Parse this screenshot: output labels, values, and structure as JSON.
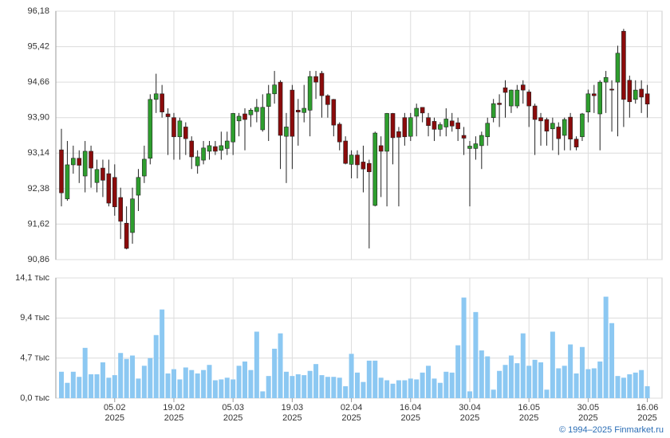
{
  "chart_data": [
    {
      "type": "candlestick",
      "categories": [
        null,
        null,
        null,
        null,
        null,
        null,
        null,
        null,
        null,
        "05.02\n2025",
        null,
        null,
        null,
        null,
        null,
        null,
        null,
        null,
        null,
        "19.02\n2025",
        null,
        null,
        null,
        null,
        null,
        null,
        null,
        null,
        null,
        "05.03\n2025",
        null,
        null,
        null,
        null,
        null,
        null,
        null,
        null,
        null,
        "19.03\n2025",
        null,
        null,
        null,
        null,
        null,
        null,
        null,
        null,
        null,
        "02.04\n2025",
        null,
        null,
        null,
        null,
        null,
        null,
        null,
        null,
        null,
        "16.04\n2025",
        null,
        null,
        null,
        null,
        null,
        null,
        null,
        null,
        null,
        "30.04\n2025",
        null,
        null,
        null,
        null,
        null,
        null,
        null,
        null,
        null,
        "16.05\n2025",
        null,
        null,
        null,
        null,
        null,
        null,
        null,
        null,
        null,
        "30.05\n2025",
        null,
        null,
        null,
        null,
        null,
        null,
        null,
        null,
        null,
        "16.06\n2025"
      ],
      "open": [
        93.21,
        92.16,
        92.89,
        93.03,
        92.65,
        93.18,
        92.51,
        92.82,
        92.7,
        92.62,
        92.19,
        91.64,
        91.44,
        92.24,
        92.65,
        93.03,
        94.29,
        94.41,
        93.98,
        93.9,
        93.49,
        93.7,
        93.4,
        92.87,
        92.99,
        93.18,
        93.28,
        93.2,
        93.24,
        93.38,
        93.83,
        93.98,
        93.96,
        94.03,
        93.64,
        94.14,
        94.41,
        94.66,
        93.5,
        94.49,
        94.06,
        94.01,
        94.06,
        94.78,
        94.85,
        94.37,
        94.29,
        93.76,
        93.4,
        92.9,
        93.1,
        92.95,
        92.92,
        92.02,
        93.3,
        93.18,
        93.99,
        93.6,
        93.9,
        93.5,
        93.93,
        94.12,
        93.9,
        93.82,
        93.65,
        93.7,
        93.83,
        93.79,
        93.52,
        93.24,
        93.24,
        93.3,
        93.49,
        93.9,
        94.21,
        94.54,
        94.15,
        94.15,
        94.6,
        94.45,
        94.15,
        93.9,
        93.86,
        93.66,
        93.7,
        93.52,
        93.91,
        93.44,
        93.49,
        94.02,
        94.41,
        93.98,
        94.66,
        94.51,
        94.66,
        95.75,
        94.7,
        94.29,
        94.51,
        94.41
      ],
      "high": [
        93.66,
        93.4,
        93.3,
        93.2,
        93.4,
        93.3,
        93.0,
        93.0,
        93.0,
        92.9,
        92.4,
        92.0,
        92.4,
        92.8,
        93.3,
        94.4,
        94.84,
        94.6,
        94.1,
        94.0,
        93.9,
        93.8,
        93.5,
        93.2,
        93.4,
        93.4,
        93.4,
        93.6,
        93.6,
        94.0,
        94.0,
        94.1,
        94.1,
        94.3,
        94.4,
        94.6,
        94.9,
        94.7,
        94.0,
        94.6,
        94.3,
        94.6,
        94.9,
        94.9,
        94.9,
        94.4,
        94.3,
        93.8,
        93.5,
        93.2,
        93.2,
        93.3,
        93.0,
        93.6,
        93.5,
        94.0,
        94.0,
        93.7,
        94.0,
        94.0,
        94.2,
        94.1,
        94.0,
        93.9,
        93.8,
        94.1,
        94.0,
        93.9,
        93.7,
        93.4,
        93.5,
        93.6,
        93.9,
        94.3,
        94.4,
        94.7,
        94.5,
        94.6,
        94.7,
        94.5,
        94.2,
        94.0,
        93.9,
        93.9,
        93.8,
        93.9,
        94.0,
        93.5,
        94.0,
        94.5,
        94.6,
        94.7,
        94.9,
        94.7,
        95.44,
        95.8,
        94.8,
        94.7,
        94.7,
        94.6
      ],
      "low": [
        92.0,
        92.12,
        92.7,
        92.5,
        92.3,
        92.4,
        92.3,
        92.2,
        92.0,
        91.8,
        91.3,
        91.08,
        91.2,
        91.9,
        92.5,
        92.9,
        94.0,
        93.9,
        93.1,
        93.0,
        93.0,
        93.1,
        92.8,
        92.7,
        92.9,
        93.0,
        93.1,
        93.0,
        93.1,
        93.1,
        93.5,
        93.2,
        93.7,
        93.8,
        93.6,
        93.4,
        94.2,
        92.8,
        92.5,
        92.8,
        93.3,
        93.8,
        93.5,
        94.3,
        93.9,
        93.9,
        93.5,
        93.2,
        92.9,
        92.6,
        92.6,
        92.3,
        91.1,
        92.0,
        92.2,
        92.0,
        92.9,
        92.0,
        93.3,
        93.4,
        93.5,
        93.8,
        93.5,
        93.4,
        93.5,
        93.5,
        93.6,
        93.4,
        93.1,
        92.0,
        93.0,
        92.8,
        93.3,
        93.8,
        93.7,
        93.9,
        94.0,
        94.1,
        94.2,
        93.7,
        93.1,
        93.3,
        93.3,
        93.2,
        93.1,
        93.2,
        93.2,
        93.2,
        93.4,
        93.8,
        94.0,
        93.2,
        94.0,
        93.6,
        93.5,
        93.7,
        93.9,
        94.2,
        94.0,
        93.9
      ],
      "close": [
        92.29,
        92.89,
        93.03,
        92.88,
        93.18,
        92.82,
        92.79,
        92.56,
        92.07,
        91.99,
        91.68,
        91.1,
        92.16,
        92.62,
        93.01,
        94.29,
        94.41,
        94.02,
        93.92,
        93.49,
        93.83,
        93.45,
        93.06,
        93.06,
        93.25,
        93.3,
        93.18,
        93.3,
        93.4,
        93.99,
        93.93,
        93.86,
        94.06,
        94.12,
        94.12,
        94.41,
        94.6,
        93.52,
        93.7,
        93.5,
        94.02,
        94.1,
        94.78,
        94.66,
        94.37,
        94.18,
        93.74,
        93.38,
        92.92,
        93.1,
        92.89,
        92.8,
        92.74,
        93.57,
        93.18,
        93.99,
        93.47,
        93.48,
        93.49,
        93.9,
        94.1,
        94.0,
        93.73,
        93.65,
        93.75,
        93.87,
        93.72,
        93.66,
        93.46,
        93.29,
        93.34,
        93.52,
        93.78,
        94.2,
        94.18,
        94.44,
        94.49,
        94.49,
        94.49,
        94.15,
        93.86,
        93.83,
        93.61,
        93.78,
        93.45,
        93.86,
        93.44,
        93.27,
        93.98,
        94.41,
        94.37,
        94.66,
        94.76,
        94.49,
        95.28,
        94.29,
        94.24,
        94.49,
        94.34,
        94.19
      ],
      "up_color": "#2e9e2e",
      "down_color": "#8b0b0b",
      "ylim": [
        90.86,
        96.18
      ],
      "yticks": [
        {
          "value": 90.86,
          "label": "90,86"
        },
        {
          "value": 91.62,
          "label": "91,62"
        },
        {
          "value": 92.38,
          "label": "92,38"
        },
        {
          "value": 93.14,
          "label": "93,14"
        },
        {
          "value": 93.9,
          "label": "93,90"
        },
        {
          "value": 94.66,
          "label": "94,66"
        },
        {
          "value": 95.42,
          "label": "95,42"
        },
        {
          "value": 96.18,
          "label": "96,18"
        }
      ],
      "grid": true
    },
    {
      "type": "bar",
      "values": [
        3.1,
        1.8,
        3.1,
        2.5,
        5.9,
        2.8,
        2.8,
        4.2,
        2.4,
        2.7,
        5.3,
        4.6,
        5.0,
        2.3,
        3.8,
        4.7,
        7.4,
        10.4,
        2.9,
        3.4,
        2.2,
        3.6,
        3.3,
        2.9,
        3.3,
        3.9,
        2.1,
        2.2,
        2.4,
        2.2,
        3.8,
        4.3,
        3.3,
        7.8,
        0.8,
        2.6,
        5.8,
        7.6,
        3.1,
        2.6,
        2.8,
        2.7,
        3.2,
        4.0,
        2.7,
        2.5,
        2.5,
        2.4,
        1.4,
        5.2,
        3.0,
        1.9,
        4.4,
        4.4,
        2.4,
        2.1,
        1.7,
        2.1,
        2.1,
        2.3,
        2.2,
        3.0,
        3.8,
        2.3,
        1.8,
        3.1,
        3.0,
        6.2,
        11.8,
        0.8,
        10.1,
        5.6,
        4.9,
        1.0,
        3.2,
        3.9,
        5.0,
        4.1,
        7.6,
        3.8,
        4.5,
        4.2,
        1.0,
        7.8,
        3.5,
        3.8,
        6.3,
        2.9,
        6.0,
        3.4,
        3.5,
        4.3,
        11.9,
        8.8,
        2.6,
        2.4,
        2.8,
        3.0,
        3.3,
        1.4
      ],
      "color": "#8cc8f2",
      "ylim": [
        0,
        14.1
      ],
      "yticks": [
        {
          "value": 0,
          "label": "0,0 тыс"
        },
        {
          "value": 4.7,
          "label": "4,7 тыс"
        },
        {
          "value": 9.4,
          "label": "9,4 тыс"
        },
        {
          "value": 14.1,
          "label": "14,1 тыс"
        }
      ],
      "grid": true
    }
  ],
  "credit": "© 1994–2025 Finmarket.ru"
}
